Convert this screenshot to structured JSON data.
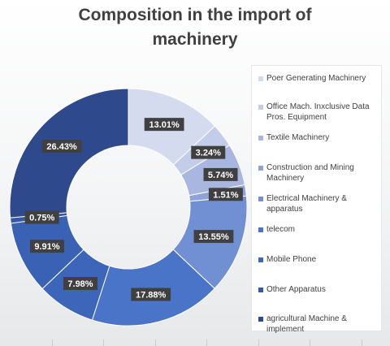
{
  "chart_data": {
    "type": "pie",
    "variant": "donut",
    "title": [
      "Composition in the import of",
      "machinery"
    ],
    "slices": [
      {
        "label": "Poer Generating Machinery",
        "value": 13.01,
        "display": "13.01%",
        "color": "#d4dbef"
      },
      {
        "label": "Office Mach. Inxclusive Data Pros. Equipment",
        "value": 3.24,
        "display": "3.24%",
        "color": "#c3cde9"
      },
      {
        "label": "Textile Machinery",
        "value": 5.74,
        "display": "5.74%",
        "color": "#a9b7e0"
      },
      {
        "label": "Construction and Mining Machinery",
        "value": 1.51,
        "display": "1.51%",
        "color": "#8fa3d8"
      },
      {
        "label": "Electrical Machinery & apparatus",
        "value": 13.55,
        "display": "13.55%",
        "color": "#7190d4"
      },
      {
        "label": "telecom",
        "value": 17.88,
        "display": "17.88%",
        "color": "#4a74c8"
      },
      {
        "label": "Mobile Phone",
        "value": 7.98,
        "display": "7.98%",
        "color": "#3d65ba"
      },
      {
        "label": "Other Apparatus",
        "value": 9.91,
        "display": "9.91%",
        "color": "#3a62b4"
      },
      {
        "label": "agricultural Machine & implement",
        "value": 0.75,
        "display": "0.75%",
        "color": "#3559a6"
      },
      {
        "label": "",
        "value": 26.43,
        "display": "26.43%",
        "color": "#2e4a8c"
      }
    ],
    "legend_entries": [
      {
        "label": "Poer Generating Machinery",
        "color": "#d4dbef"
      },
      {
        "label": "Office Mach. Inxclusive Data Pros. Equipment",
        "color": "#c3cde9"
      },
      {
        "label": "Textile Machinery",
        "color": "#a9b7e0"
      },
      {
        "label": "Construction and Mining Machinery",
        "color": "#8fa3d8"
      },
      {
        "label": "Electrical Machinery & apparatus",
        "color": "#7190d4"
      },
      {
        "label": "telecom",
        "color": "#4a74c8"
      },
      {
        "label": "Mobile Phone",
        "color": "#3d65ba"
      },
      {
        "label": "Other Apparatus",
        "color": "#3559a6"
      },
      {
        "label": "agricultural Machine & implement",
        "color": "#2e4a8c"
      }
    ],
    "legend_position": "right",
    "data_label_background": "#404040",
    "data_label_color": "#ffffff"
  }
}
